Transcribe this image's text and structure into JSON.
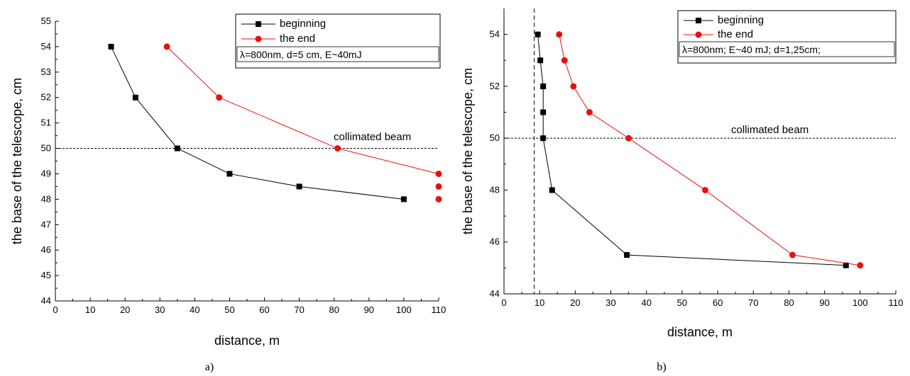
{
  "chart_data": [
    {
      "panel_label": "a)",
      "type": "line",
      "xlabel": "distance, m",
      "ylabel": "the base  of the telescope, cm",
      "xlim": [
        0,
        110
      ],
      "ylim": [
        44,
        55
      ],
      "xticks": [
        0,
        10,
        20,
        30,
        40,
        50,
        60,
        70,
        80,
        90,
        100,
        110
      ],
      "yticks": [
        44,
        45,
        46,
        47,
        48,
        49,
        50,
        51,
        52,
        53,
        54,
        55
      ],
      "minor_ticks": true,
      "grid": false,
      "legend_position": "top-right",
      "series": [
        {
          "name": "beginning",
          "color": "#000000",
          "marker": "square",
          "connected": true,
          "x": [
            16,
            23,
            35,
            50,
            70,
            100
          ],
          "y": [
            54,
            52,
            50,
            49,
            48.5,
            48
          ]
        },
        {
          "name": "the end",
          "color": "#e8100c",
          "marker": "circle",
          "connected": true,
          "x": [
            32,
            47,
            81,
            110
          ],
          "y": [
            54,
            52,
            50,
            49
          ]
        },
        {
          "color": "#e8100c",
          "marker": "circle",
          "connected": false,
          "x": [
            110,
            110
          ],
          "y": [
            48.5,
            48
          ]
        }
      ],
      "legend_note": "λ=800nm, d=5 cm, E~40mJ",
      "reference_lines": [
        {
          "orientation": "horizontal",
          "value": 50,
          "style": "dotted",
          "label": "collimated beam"
        }
      ]
    },
    {
      "panel_label": "b)",
      "type": "line",
      "xlabel": "distance, m",
      "ylabel": "the base of the telescope, cm",
      "xlim": [
        0,
        110
      ],
      "ylim": [
        44,
        55
      ],
      "xticks": [
        0,
        10,
        20,
        30,
        40,
        50,
        60,
        70,
        80,
        90,
        100,
        110
      ],
      "yticks": [
        44,
        46,
        48,
        50,
        52,
        54
      ],
      "minor_ticks": true,
      "grid": false,
      "legend_position": "top-right",
      "series": [
        {
          "name": "beginning",
          "color": "#000000",
          "marker": "square",
          "connected": true,
          "x": [
            9.5,
            10.2,
            11,
            11,
            11,
            13.5,
            34.5,
            96
          ],
          "y": [
            54,
            53,
            52,
            51,
            50,
            48,
            45.5,
            45.1
          ]
        },
        {
          "name": "the end",
          "color": "#e8100c",
          "marker": "circle",
          "connected": true,
          "x": [
            15.5,
            17,
            19.5,
            24,
            35,
            56.5,
            81,
            100
          ],
          "y": [
            54,
            53,
            52,
            51,
            50,
            48,
            45.5,
            45.1
          ]
        }
      ],
      "legend_note": "λ=800nm; E~40 mJ; d=1,25cm;",
      "reference_lines": [
        {
          "orientation": "horizontal",
          "value": 50,
          "style": "dotted",
          "label": "collimated beam"
        },
        {
          "orientation": "vertical",
          "value": 8.5,
          "style": "dashed"
        }
      ]
    }
  ]
}
